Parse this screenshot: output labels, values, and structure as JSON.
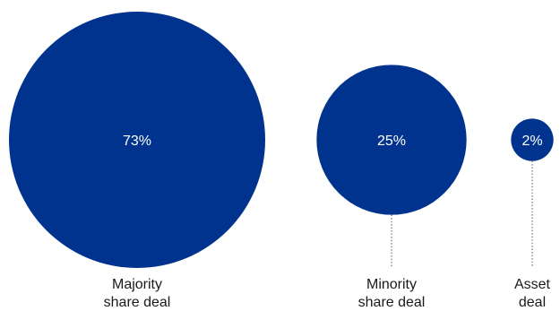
{
  "chart_data": {
    "type": "bubble",
    "title": "",
    "categories": [
      "Majority share deal",
      "Minority share deal",
      "Asset deal"
    ],
    "label_lines": [
      [
        "Majority",
        "share deal"
      ],
      [
        "Minority",
        "share deal"
      ],
      [
        "Asset",
        "deal"
      ]
    ],
    "values": [
      73,
      25,
      2
    ],
    "value_labels": [
      "73%",
      "25%",
      "2%"
    ],
    "unit": "%",
    "legend": "none",
    "grid": false,
    "colors": {
      "bubble": "#00338d",
      "value_text": "#ffffff",
      "label_text": "#1a1a1a",
      "leader_line": "#555555"
    }
  }
}
